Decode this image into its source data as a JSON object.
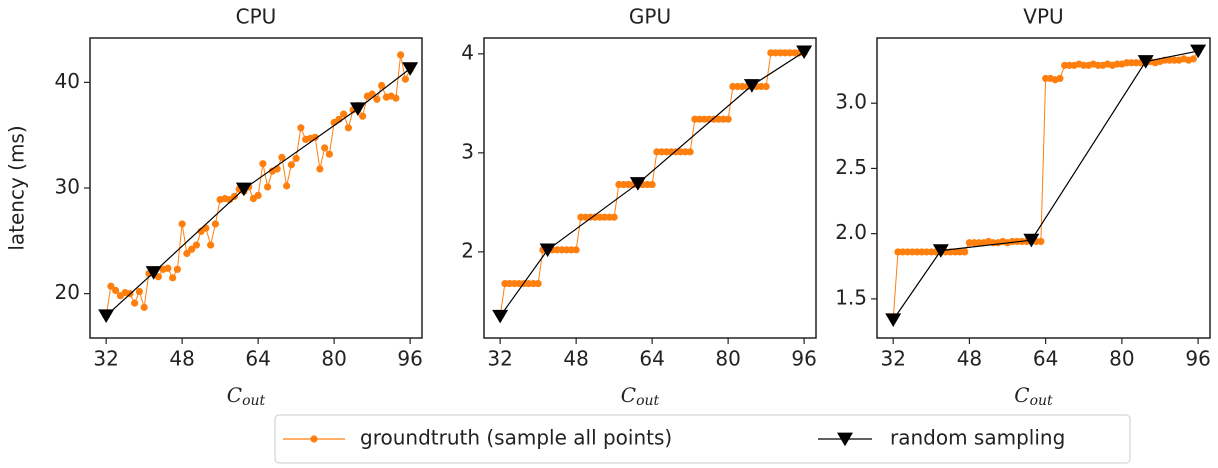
{
  "chart_data": [
    {
      "type": "line",
      "title": "CPU",
      "ylabel": "latency (ms)",
      "xlabel": "C",
      "xlabel_subscript": "out",
      "xlim": [
        28.6,
        98.5
      ],
      "xticks": [
        32,
        48,
        64,
        80,
        96
      ],
      "ylim": [
        15.8,
        44.2
      ],
      "yticks": [
        20,
        30,
        40
      ],
      "series": [
        {
          "name": "groundtruth (sample all points)",
          "color": "#ff7f0e",
          "marker": "circle",
          "x": [
            32,
            33,
            34,
            35,
            36,
            37,
            38,
            39,
            40,
            41,
            42,
            43,
            44,
            45,
            46,
            47,
            48,
            49,
            50,
            51,
            52,
            53,
            54,
            55,
            56,
            57,
            58,
            59,
            60,
            61,
            62,
            63,
            64,
            65,
            66,
            67,
            68,
            69,
            70,
            71,
            72,
            73,
            74,
            75,
            76,
            77,
            78,
            79,
            80,
            81,
            82,
            83,
            84,
            85,
            86,
            87,
            88,
            89,
            90,
            91,
            92,
            93,
            94,
            95,
            96
          ],
          "values": [
            17.9,
            20.7,
            20.3,
            19.8,
            20.1,
            20.0,
            19.1,
            20.2,
            18.7,
            21.9,
            22.1,
            21.6,
            22.3,
            22.4,
            21.5,
            22.3,
            26.6,
            23.8,
            24.2,
            24.6,
            25.9,
            26.2,
            24.6,
            26.6,
            28.9,
            29.0,
            28.9,
            29.2,
            29.9,
            29.7,
            30.1,
            29.0,
            29.3,
            32.3,
            30.1,
            31.6,
            31.8,
            32.9,
            30.2,
            32.2,
            32.8,
            35.7,
            34.6,
            34.7,
            34.8,
            31.8,
            33.8,
            33.2,
            36.2,
            36.5,
            37.0,
            35.7,
            37.4,
            37.8,
            36.8,
            38.7,
            38.9,
            38.4,
            39.7,
            38.6,
            38.7,
            38.5,
            42.6,
            40.3,
            41.2
          ]
        },
        {
          "name": "random sampling",
          "color": "#000000",
          "marker": "triangle-down",
          "x": [
            32,
            42,
            61,
            85,
            96
          ],
          "values": [
            17.9,
            22.0,
            29.9,
            37.5,
            41.3
          ]
        }
      ]
    },
    {
      "type": "line",
      "title": "GPU",
      "xlabel": "C",
      "xlabel_subscript": "out",
      "xlim": [
        28.6,
        98.5
      ],
      "xticks": [
        32,
        48,
        64,
        80,
        96
      ],
      "ylim": [
        1.13,
        4.16
      ],
      "yticks": [
        2,
        3,
        4
      ],
      "series": [
        {
          "name": "groundtruth (sample all points)",
          "color": "#ff7f0e",
          "marker": "circle",
          "x": [
            32,
            33,
            34,
            35,
            36,
            37,
            38,
            39,
            40,
            41,
            42,
            43,
            44,
            45,
            46,
            47,
            48,
            49,
            50,
            51,
            52,
            53,
            54,
            55,
            56,
            57,
            58,
            59,
            60,
            61,
            62,
            63,
            64,
            65,
            66,
            67,
            68,
            69,
            70,
            71,
            72,
            73,
            74,
            75,
            76,
            77,
            78,
            79,
            80,
            81,
            82,
            83,
            84,
            85,
            86,
            87,
            88,
            89,
            90,
            91,
            92,
            93,
            94,
            95,
            96
          ],
          "values": [
            1.35,
            1.68,
            1.68,
            1.68,
            1.68,
            1.68,
            1.68,
            1.68,
            1.68,
            2.02,
            2.02,
            2.02,
            2.02,
            2.02,
            2.02,
            2.02,
            2.02,
            2.35,
            2.35,
            2.35,
            2.35,
            2.35,
            2.35,
            2.35,
            2.35,
            2.68,
            2.68,
            2.68,
            2.68,
            2.68,
            2.68,
            2.68,
            2.68,
            3.01,
            3.01,
            3.01,
            3.01,
            3.01,
            3.01,
            3.01,
            3.01,
            3.34,
            3.34,
            3.34,
            3.34,
            3.34,
            3.34,
            3.34,
            3.34,
            3.67,
            3.67,
            3.67,
            3.67,
            3.67,
            3.67,
            3.67,
            3.67,
            4.01,
            4.01,
            4.01,
            4.01,
            4.01,
            4.01,
            4.01,
            4.01
          ]
        },
        {
          "name": "random sampling",
          "color": "#000000",
          "marker": "triangle-down",
          "x": [
            32,
            42,
            61,
            85,
            96
          ],
          "values": [
            1.35,
            2.02,
            2.69,
            3.68,
            4.02
          ]
        }
      ]
    },
    {
      "type": "line",
      "title": "VPU",
      "xlabel": "C",
      "xlabel_subscript": "out",
      "xlim": [
        28.6,
        98.5
      ],
      "xticks": [
        32,
        48,
        64,
        80,
        96
      ],
      "ylim": [
        1.2,
        3.5
      ],
      "yticks": [
        1.5,
        {
          "value": 2.0,
          "label": "2.0"
        },
        2.5,
        {
          "value": 3.0,
          "label": "3.0"
        }
      ],
      "series": [
        {
          "name": "groundtruth (sample all points)",
          "color": "#ff7f0e",
          "marker": "circle",
          "x": [
            32,
            33,
            34,
            35,
            36,
            37,
            38,
            39,
            40,
            41,
            42,
            43,
            44,
            45,
            46,
            47,
            48,
            49,
            50,
            51,
            52,
            53,
            54,
            55,
            56,
            57,
            58,
            59,
            60,
            61,
            62,
            63,
            64,
            65,
            66,
            67,
            68,
            69,
            70,
            71,
            72,
            73,
            74,
            75,
            76,
            77,
            78,
            79,
            80,
            81,
            82,
            83,
            84,
            85,
            86,
            87,
            88,
            89,
            90,
            91,
            92,
            93,
            94,
            95,
            96
          ],
          "values": [
            1.34,
            1.86,
            1.86,
            1.86,
            1.86,
            1.86,
            1.86,
            1.86,
            1.86,
            1.86,
            1.86,
            1.86,
            1.86,
            1.86,
            1.86,
            1.86,
            1.93,
            1.93,
            1.93,
            1.93,
            1.94,
            1.93,
            1.93,
            1.94,
            1.93,
            1.94,
            1.94,
            1.94,
            1.94,
            1.95,
            1.94,
            1.94,
            3.19,
            3.19,
            3.18,
            3.19,
            3.29,
            3.29,
            3.29,
            3.3,
            3.29,
            3.29,
            3.3,
            3.29,
            3.29,
            3.3,
            3.29,
            3.3,
            3.3,
            3.31,
            3.31,
            3.31,
            3.31,
            3.31,
            3.32,
            3.31,
            3.32,
            3.33,
            3.33,
            3.33,
            3.33,
            3.34,
            3.33,
            3.34,
            3.4
          ]
        },
        {
          "name": "random sampling",
          "color": "#000000",
          "marker": "triangle-down",
          "x": [
            32,
            42,
            61,
            85,
            96
          ],
          "values": [
            1.34,
            1.87,
            1.95,
            3.32,
            3.4
          ]
        }
      ]
    }
  ]
}
